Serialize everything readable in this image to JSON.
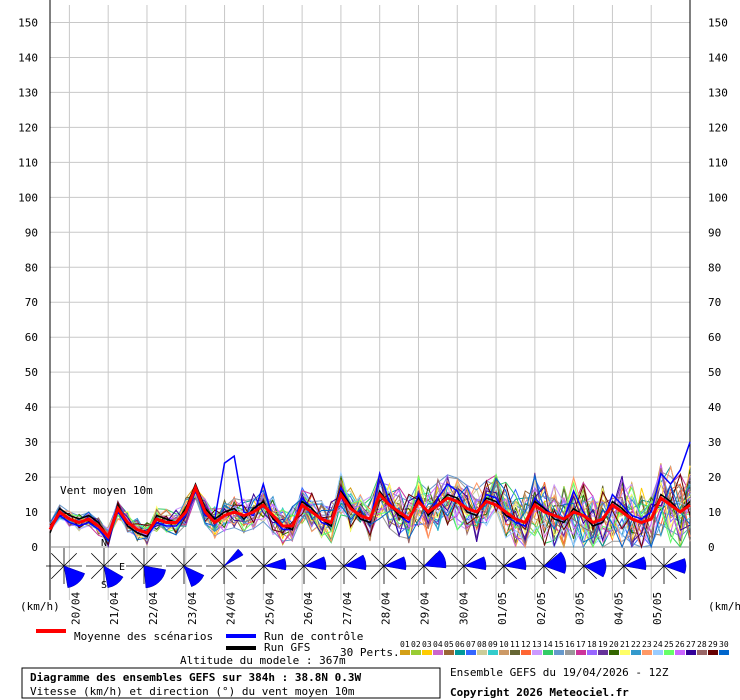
{
  "chart_data": {
    "type": "line",
    "title": "Diagramme des ensembles GEFS sur 384h : 38.8N 0.3W",
    "subtitle": "Vitesse (km/h) et direction (°) du vent moyen 10m",
    "annotation": "Vent moyen 10m",
    "ylabel_left": "(km/h)",
    "ylabel_right": "(km/h)",
    "ylim": [
      0,
      155
    ],
    "yticks": [
      0,
      10,
      20,
      30,
      40,
      50,
      60,
      70,
      80,
      90,
      100,
      110,
      120,
      130,
      140,
      150
    ],
    "x_date_labels": [
      "20/04",
      "21/04",
      "22/04",
      "23/04",
      "24/04",
      "25/04",
      "26/04",
      "27/04",
      "28/04",
      "29/04",
      "30/04",
      "01/05",
      "02/05",
      "03/05",
      "04/05",
      "05/05"
    ],
    "x_start_step_hours": 6,
    "x_step_hours": 6,
    "grid": true,
    "series": [
      {
        "name": "Moyenne des scénarios",
        "color": "#ff0000",
        "values": [
          5,
          10,
          8,
          7,
          8,
          6,
          3,
          11,
          7,
          5,
          4,
          8,
          7,
          7,
          10,
          17,
          10,
          7,
          9,
          10,
          9,
          10,
          12,
          9,
          6,
          6,
          12,
          10,
          8,
          7,
          15,
          11,
          9,
          8,
          15,
          12,
          10,
          8,
          13,
          10,
          12,
          14,
          13,
          11,
          10,
          13,
          12,
          10,
          8,
          7,
          12,
          10,
          9,
          8,
          10,
          9,
          7,
          8,
          12,
          10,
          8,
          7,
          8,
          14,
          12,
          10,
          12
        ]
      },
      {
        "name": "Run de contrôle",
        "color": "#0000ff",
        "values": [
          5,
          9,
          7,
          6,
          7,
          5,
          2,
          10,
          6,
          4,
          3,
          7,
          6,
          6,
          9,
          16,
          9,
          8,
          24,
          26,
          10,
          9,
          18,
          8,
          5,
          5,
          14,
          11,
          7,
          6,
          17,
          12,
          8,
          7,
          21,
          13,
          9,
          7,
          15,
          9,
          14,
          18,
          16,
          10,
          9,
          15,
          14,
          9,
          7,
          6,
          14,
          11,
          9,
          8,
          16,
          10,
          6,
          7,
          15,
          12,
          9,
          8,
          10,
          21,
          18,
          22,
          30
        ]
      },
      {
        "name": "Run GFS",
        "color": "#000000",
        "values": [
          4,
          11,
          9,
          8,
          9,
          7,
          3,
          12,
          6,
          4,
          3,
          9,
          8,
          7,
          11,
          18,
          11,
          8,
          10,
          11,
          8,
          11,
          13,
          8,
          6,
          5,
          13,
          11,
          8,
          6,
          16,
          12,
          8,
          7,
          16,
          12,
          9,
          8,
          14,
          9,
          12,
          15,
          14,
          10,
          9,
          14,
          13,
          9,
          8,
          7,
          13,
          11,
          8,
          7,
          11,
          9,
          6,
          7,
          13,
          11,
          8,
          7,
          8,
          15,
          13,
          10,
          13
        ]
      }
    ],
    "perturbations_label": "30 Perts.",
    "perturbation_ids": [
      "01",
      "02",
      "03",
      "04",
      "05",
      "06",
      "07",
      "08",
      "09",
      "10",
      "11",
      "12",
      "13",
      "14",
      "15",
      "16",
      "17",
      "18",
      "19",
      "20",
      "21",
      "22",
      "23",
      "24",
      "25",
      "26",
      "27",
      "28",
      "29",
      "30"
    ],
    "perturbation_colors": [
      "#d4a017",
      "#99cc33",
      "#ffcc00",
      "#cc66cc",
      "#996633",
      "#009999",
      "#3366ff",
      "#cccc99",
      "#33cccc",
      "#cc9966",
      "#666633",
      "#ff6633",
      "#cc99ff",
      "#33cc66",
      "#6699cc",
      "#999999",
      "#cc3399",
      "#9966ff",
      "#663399",
      "#336600",
      "#ffff66",
      "#3399cc",
      "#ff9966",
      "#99ccff",
      "#66ff66",
      "#cc66ff",
      "#330099",
      "#996666",
      "#660000",
      "#0066cc"
    ],
    "wind_direction_labels": {
      "n": "N",
      "e": "E",
      "s": "S"
    },
    "wind_direction_rose": [
      {
        "label": "20/04",
        "sector_from_deg": 110,
        "sector_to_deg": 170
      },
      {
        "label": "21/04",
        "sector_from_deg": 120,
        "sector_to_deg": 170
      },
      {
        "label": "22/04",
        "sector_from_deg": 100,
        "sector_to_deg": 175
      },
      {
        "label": "23/04",
        "sector_from_deg": 115,
        "sector_to_deg": 160
      },
      {
        "label": "24/04",
        "sector_from_deg": 40,
        "sector_to_deg": 60
      },
      {
        "label": "25/04",
        "sector_from_deg": 70,
        "sector_to_deg": 100
      },
      {
        "label": "26/04",
        "sector_from_deg": 65,
        "sector_to_deg": 100
      },
      {
        "label": "27/04",
        "sector_from_deg": 60,
        "sector_to_deg": 100
      },
      {
        "label": "28/04",
        "sector_from_deg": 65,
        "sector_to_deg": 100
      },
      {
        "label": "29/04",
        "sector_from_deg": 45,
        "sector_to_deg": 95
      },
      {
        "label": "30/04",
        "sector_from_deg": 65,
        "sector_to_deg": 100
      },
      {
        "label": "01/05",
        "sector_from_deg": 65,
        "sector_to_deg": 100
      },
      {
        "label": "02/05",
        "sector_from_deg": 50,
        "sector_to_deg": 110
      },
      {
        "label": "03/05",
        "sector_from_deg": 70,
        "sector_to_deg": 120
      },
      {
        "label": "04/05",
        "sector_from_deg": 65,
        "sector_to_deg": 100
      },
      {
        "label": "05/05",
        "sector_from_deg": 70,
        "sector_to_deg": 110
      }
    ]
  },
  "legend": {
    "mean": "Moyenne des scénarios",
    "control": "Run de contrôle",
    "gfs": "Run GFS",
    "altitude": "Altitude du modele : 367m"
  },
  "footer": {
    "title": "Diagramme des ensembles GEFS sur 384h : 38.8N 0.3W",
    "subtitle": "Vitesse (km/h) et direction (°) du vent moyen 10m",
    "run": "Ensemble GEFS du 19/04/2026 - 12Z",
    "copyright": "Copyright 2026 Meteociel.fr"
  },
  "colors": {
    "grid": "#c8c8c8",
    "mean": "#ff0000",
    "control": "#0000ff",
    "gfs": "#000000",
    "rose": "#0000ff"
  }
}
